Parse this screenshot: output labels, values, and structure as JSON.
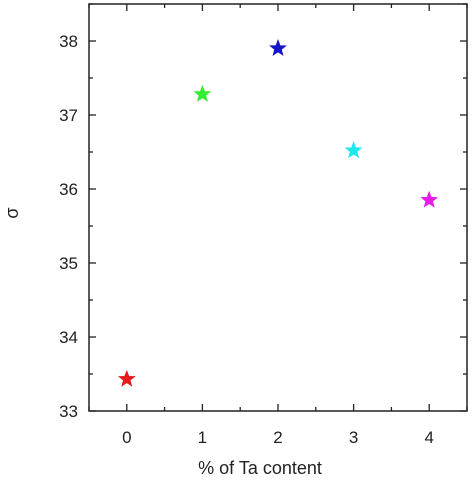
{
  "chart_data": {
    "type": "scatter",
    "title": "",
    "xlabel": "% of Ta content",
    "ylabel": "σ",
    "xlim": [
      -0.5,
      4.5
    ],
    "ylim": [
      33,
      38.5
    ],
    "x_ticks": [
      0,
      1,
      2,
      3,
      4
    ],
    "x_tick_labels": [
      "0",
      "1",
      "2",
      "3",
      "4"
    ],
    "y_ticks": [
      33,
      34,
      35,
      36,
      37,
      38
    ],
    "y_tick_labels": [
      "33",
      "34",
      "35",
      "36",
      "37",
      "38"
    ],
    "grid": false,
    "legend": "none",
    "marker": "star",
    "points": [
      {
        "x": 0,
        "y": 33.43,
        "color": "#e41a1c"
      },
      {
        "x": 1,
        "y": 37.28,
        "color": "#33ee33"
      },
      {
        "x": 2,
        "y": 37.9,
        "color": "#1414c8"
      },
      {
        "x": 3,
        "y": 36.52,
        "color": "#1ee8ee"
      },
      {
        "x": 4,
        "y": 35.85,
        "color": "#e61ee6"
      }
    ]
  }
}
